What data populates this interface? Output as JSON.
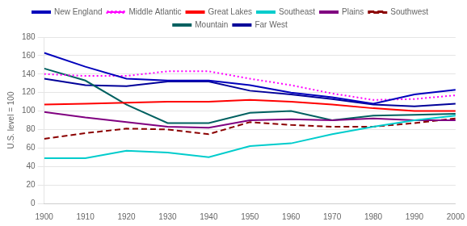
{
  "chart_data": {
    "type": "line",
    "x": [
      1900,
      1910,
      1920,
      1930,
      1940,
      1950,
      1960,
      1970,
      1980,
      1990,
      2000
    ],
    "series": [
      {
        "name": "New England",
        "color": "#0000BB",
        "line_style": "solid",
        "values": [
          163,
          148,
          135,
          133,
          133,
          128,
          120,
          115,
          108,
          118,
          123
        ]
      },
      {
        "name": "Middle Atlantic",
        "color": "#FF00FF",
        "line_style": "dotted",
        "values": [
          140,
          138,
          138,
          143,
          143,
          135,
          128,
          119,
          112,
          113,
          117
        ]
      },
      {
        "name": "Great Lakes",
        "color": "#FF0000",
        "line_style": "solid",
        "values": [
          107,
          108,
          109,
          110,
          110,
          112,
          110,
          107,
          103,
          100,
          100
        ]
      },
      {
        "name": "Southeast",
        "color": "#00CCCC",
        "line_style": "solid",
        "values": [
          49,
          49,
          57,
          55,
          50,
          62,
          65,
          75,
          83,
          90,
          95
        ]
      },
      {
        "name": "Plains",
        "color": "#800080",
        "line_style": "solid",
        "values": [
          99,
          93,
          88,
          83,
          82,
          90,
          91,
          90,
          92,
          90,
          90
        ]
      },
      {
        "name": "Southwest",
        "color": "#8B0000",
        "line_style": "dashed",
        "values": [
          70,
          76,
          81,
          80,
          75,
          88,
          85,
          83,
          83,
          87,
          92
        ]
      },
      {
        "name": "Mountain",
        "color": "#006060",
        "line_style": "solid",
        "values": [
          146,
          133,
          107,
          87,
          87,
          98,
          100,
          90,
          95,
          96,
          97
        ]
      },
      {
        "name": "Far West",
        "color": "#000099",
        "line_style": "solid",
        "values": [
          135,
          128,
          127,
          132,
          132,
          122,
          118,
          113,
          107,
          105,
          108
        ]
      }
    ],
    "xlim": [
      1900,
      2000
    ],
    "xticks": [
      1900,
      1910,
      1920,
      1930,
      1940,
      1950,
      1960,
      1970,
      1980,
      1990,
      2000
    ],
    "ylim": [
      0,
      180
    ],
    "yticks": [
      0,
      20,
      40,
      60,
      80,
      100,
      120,
      140,
      160,
      180
    ],
    "ylabel": "U.S. level = 100",
    "grid": "y",
    "legend": "top"
  }
}
